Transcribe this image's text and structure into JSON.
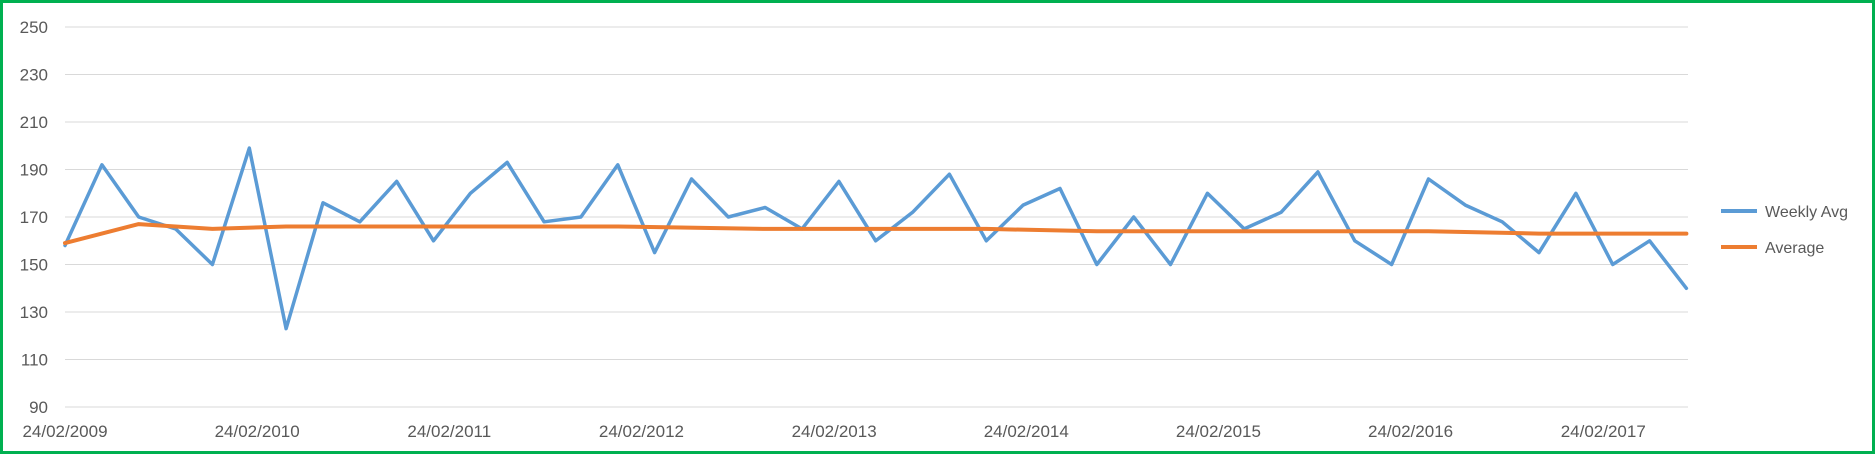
{
  "chart_data": {
    "type": "line",
    "title": "",
    "xlabel": "",
    "ylabel": "",
    "ylim": [
      90,
      250
    ],
    "y_ticks": [
      90,
      110,
      130,
      150,
      170,
      190,
      210,
      230,
      250
    ],
    "xlim": [
      "24/02/2009",
      "04/08/2017"
    ],
    "x_tick_labels": [
      "24/02/2009",
      "24/02/2010",
      "24/02/2011",
      "24/02/2012",
      "24/02/2013",
      "24/02/2014",
      "24/02/2015",
      "24/02/2016",
      "24/02/2017"
    ],
    "grid": "horizontal",
    "legend_position": "right",
    "frame_color": "#00b050",
    "series": [
      {
        "name": "Weekly Avg",
        "color": "#5b9bd5",
        "x": [
          "24/02/2009",
          "05/05/2009",
          "14/07/2009",
          "22/09/2009",
          "01/12/2009",
          "09/02/2010",
          "20/04/2010",
          "29/06/2010",
          "07/09/2010",
          "16/11/2010",
          "25/01/2011",
          "05/04/2011",
          "14/06/2011",
          "23/08/2011",
          "01/11/2011",
          "10/01/2012",
          "20/03/2012",
          "29/05/2012",
          "07/08/2012",
          "16/10/2012",
          "25/12/2012",
          "05/03/2013",
          "14/05/2013",
          "23/07/2013",
          "01/10/2013",
          "10/12/2013",
          "18/02/2014",
          "29/04/2014",
          "08/07/2014",
          "16/09/2014",
          "25/11/2014",
          "03/02/2015",
          "14/04/2015",
          "23/06/2015",
          "01/09/2015",
          "10/11/2015",
          "19/01/2016",
          "29/03/2016",
          "07/06/2016",
          "16/08/2016",
          "25/10/2016",
          "03/01/2017",
          "14/03/2017",
          "23/05/2017",
          "01/08/2017"
        ],
        "y": [
          158,
          192,
          170,
          165,
          150,
          199,
          123,
          176,
          168,
          185,
          160,
          180,
          193,
          168,
          170,
          192,
          155,
          186,
          170,
          174,
          165,
          185,
          160,
          172,
          188,
          160,
          175,
          182,
          150,
          170,
          150,
          180,
          165,
          172,
          189,
          160,
          150,
          186,
          175,
          168,
          155,
          180,
          150,
          160,
          140
        ]
      },
      {
        "name": "Average",
        "color": "#ed7d31",
        "x": [
          "24/02/2009",
          "14/07/2009",
          "01/12/2009",
          "20/04/2010",
          "29/06/2010",
          "25/01/2011",
          "23/08/2011",
          "10/01/2012",
          "16/10/2012",
          "14/05/2013",
          "10/12/2013",
          "08/07/2014",
          "03/02/2015",
          "01/09/2015",
          "29/03/2016",
          "25/10/2016",
          "23/05/2017",
          "01/08/2017"
        ],
        "y": [
          159,
          167,
          165,
          166,
          166,
          166,
          166,
          166,
          165,
          165,
          165,
          164,
          164,
          164,
          164,
          163,
          163,
          163
        ]
      }
    ]
  }
}
